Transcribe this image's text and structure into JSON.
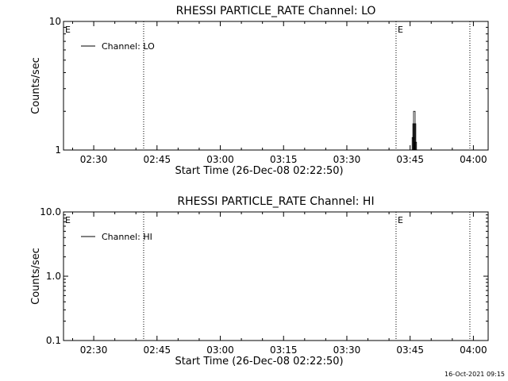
{
  "chart_data": [
    {
      "type": "line",
      "title": "RHESSI PARTICLE_RATE Channel: LO",
      "xlabel": "Start Time (26-Dec-08 02:22:50)",
      "ylabel": "Counts/sec",
      "yscale": "log",
      "ylim": [
        1,
        10
      ],
      "xlim": [
        "02:22:50",
        "04:03:30"
      ],
      "xticks": [
        "02:30",
        "02:45",
        "03:00",
        "03:15",
        "03:30",
        "03:45",
        "04:00"
      ],
      "yticks": [
        {
          "value": 1,
          "label": "1"
        },
        {
          "value": 10,
          "label": "10"
        }
      ],
      "grid": false,
      "legend_position": "top-left",
      "colors": {
        "series": "#000000",
        "background": "#ffffff"
      },
      "series": [
        {
          "name": "Channel: LO",
          "x": [
            "03:45:30",
            "03:45:40",
            "03:45:50",
            "03:46:00",
            "03:46:10",
            "03:46:20",
            "03:46:30"
          ],
          "values": [
            1,
            1.25,
            1.6,
            2.0,
            1.6,
            1.15,
            1
          ]
        }
      ],
      "event_lines": [
        {
          "time": "02:41:50",
          "label": ""
        },
        {
          "time": "03:41:40",
          "label": "E"
        },
        {
          "time": "03:59:10",
          "label": ""
        }
      ],
      "edge_label": "E"
    },
    {
      "type": "line",
      "title": "RHESSI PARTICLE_RATE Channel: HI",
      "xlabel": "Start Time (26-Dec-08 02:22:50)",
      "ylabel": "Counts/sec",
      "yscale": "log",
      "ylim": [
        0.1,
        10
      ],
      "xlim": [
        "02:22:50",
        "04:03:30"
      ],
      "xticks": [
        "02:30",
        "02:45",
        "03:00",
        "03:15",
        "03:30",
        "03:45",
        "04:00"
      ],
      "yticks": [
        {
          "value": 0.1,
          "label": "0.1"
        },
        {
          "value": 1,
          "label": "1.0"
        },
        {
          "value": 10,
          "label": "10.0"
        }
      ],
      "grid": false,
      "legend_position": "top-left",
      "colors": {
        "series": "#000000",
        "background": "#ffffff"
      },
      "series": [
        {
          "name": "Channel: HI",
          "x": [],
          "values": []
        }
      ],
      "event_lines": [
        {
          "time": "02:41:50",
          "label": ""
        },
        {
          "time": "03:41:40",
          "label": "E"
        },
        {
          "time": "03:59:10",
          "label": ""
        }
      ],
      "edge_label": "E"
    }
  ],
  "timestamp": "16-Oct-2021 09:15"
}
